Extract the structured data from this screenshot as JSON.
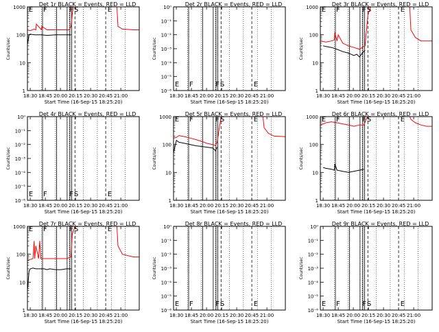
{
  "figure": {
    "xtick_labels": [
      "18:30",
      "18:45",
      "20:00",
      "20:15",
      "20:30",
      "20:45",
      "21:00"
    ],
    "x_axis_label": "Start Time (16-Sep-15 18:25:20)",
    "y_axis_label": "Counts/sec",
    "ytick_labels": [
      "1",
      "10",
      "100",
      "1000"
    ],
    "ytick_labels_small": [
      "10⁰",
      "10⁻¹",
      "10⁻²",
      "10⁻³",
      "10⁻⁴",
      "10⁻⁵",
      "10⁻⁶"
    ],
    "colors": {
      "events": "#000000",
      "lld": "#ff0000",
      "axes": "#000000"
    }
  },
  "chart_data": [
    {
      "type": "line",
      "title": "Det 1r BLACK = Events, RED = LLD",
      "yscale": "log",
      "ylim": [
        1,
        1000
      ],
      "has_data": true,
      "markers": [
        "E",
        "F",
        "F",
        "S",
        "E"
      ],
      "series": [
        {
          "color": "#000000",
          "x": [
            0.0,
            0.03,
            0.05,
            0.12,
            0.25,
            0.35,
            0.5,
            0.6,
            0.7,
            0.78
          ],
          "y": [
            45,
            100,
            105,
            100,
            100,
            95,
            100,
            100,
            100,
            100
          ]
        },
        {
          "color": "#ff0000",
          "x": [
            0.0,
            0.05,
            0.12,
            0.15,
            0.16,
            0.25,
            0.26,
            0.35,
            0.5,
            0.6,
            0.7,
            0.75,
            0.78,
            0.8,
            0.82,
            0.9,
            1.1,
            1.3,
            1.6,
            1.62,
            1.7,
            1.9,
            2.0
          ],
          "y": [
            150,
            140,
            160,
            150,
            240,
            150,
            200,
            150,
            150,
            150,
            150,
            150,
            200,
            500,
            1000,
            1000,
            1000,
            1000,
            1000,
            200,
            160,
            150,
            150
          ]
        }
      ]
    },
    {
      "type": "line",
      "title": "Det 2r BLACK = Events, RED = LLD",
      "yscale": "log",
      "ylim": [
        1e-06,
        1
      ],
      "has_data": false,
      "markers": [
        "E",
        "F",
        "F",
        "S",
        "E"
      ],
      "series": []
    },
    {
      "type": "line",
      "title": "Det 3r BLACK = Events, RED = LLD",
      "yscale": "log",
      "ylim": [
        1,
        1000
      ],
      "has_data": true,
      "markers": [
        "E",
        "F",
        "F",
        "S",
        "E"
      ],
      "series": [
        {
          "color": "#000000",
          "x": [
            0.05,
            0.1,
            0.2,
            0.3,
            0.4,
            0.5,
            0.55,
            0.6,
            0.65,
            0.7,
            0.75,
            0.8
          ],
          "y": [
            40,
            38,
            35,
            30,
            25,
            22,
            20,
            18,
            20,
            16,
            22,
            28
          ]
        },
        {
          "color": "#ff0000",
          "x": [
            0.0,
            0.1,
            0.2,
            0.25,
            0.26,
            0.3,
            0.32,
            0.4,
            0.5,
            0.6,
            0.7,
            0.75,
            0.8,
            0.85,
            0.9,
            1.1,
            1.3,
            1.6,
            1.62,
            1.7,
            1.8,
            2.0
          ],
          "y": [
            60,
            55,
            60,
            65,
            120,
            60,
            100,
            50,
            40,
            35,
            30,
            35,
            40,
            500,
            1000,
            1000,
            1000,
            1000,
            150,
            80,
            60,
            60
          ]
        }
      ]
    },
    {
      "type": "line",
      "title": "Det 4r BLACK = Events, RED = LLD",
      "yscale": "log",
      "ylim": [
        1e-06,
        1
      ],
      "has_data": false,
      "markers": [
        "E",
        "F",
        "F",
        "S",
        "E"
      ],
      "series": []
    },
    {
      "type": "line",
      "title": "Det 5r BLACK = Events, RED = LLD",
      "yscale": "log",
      "ylim": [
        1,
        1000
      ],
      "has_data": true,
      "markers": [
        "E",
        "F",
        "F",
        "S",
        "E"
      ],
      "series": [
        {
          "color": "#000000",
          "x": [
            0.0,
            0.05,
            0.1,
            0.2,
            0.3,
            0.4,
            0.5,
            0.6,
            0.7,
            0.75,
            0.78
          ],
          "y": [
            50,
            140,
            120,
            110,
            100,
            90,
            85,
            80,
            75,
            60,
            80
          ]
        },
        {
          "color": "#ff0000",
          "x": [
            0.0,
            0.05,
            0.1,
            0.2,
            0.3,
            0.4,
            0.5,
            0.6,
            0.7,
            0.75,
            0.78,
            0.82,
            0.85,
            0.9,
            1.1,
            1.3,
            1.6,
            1.62,
            1.7,
            1.8,
            2.0
          ],
          "y": [
            170,
            180,
            210,
            190,
            170,
            150,
            130,
            110,
            100,
            90,
            120,
            400,
            1000,
            1000,
            1000,
            1000,
            1000,
            400,
            250,
            200,
            190
          ]
        }
      ]
    },
    {
      "type": "line",
      "title": "Det 6r BLACK = Events, RED = LLD",
      "yscale": "log",
      "ylim": [
        1,
        1000
      ],
      "has_data": true,
      "markers": [
        "E",
        "F",
        "F",
        "S",
        "E"
      ],
      "series": [
        {
          "color": "#000000",
          "x": [
            0.05,
            0.1,
            0.2,
            0.25,
            0.26,
            0.3,
            0.4,
            0.5,
            0.6,
            0.7,
            0.78
          ],
          "y": [
            15,
            14,
            13,
            12,
            20,
            12,
            11,
            10,
            11,
            12,
            13
          ]
        },
        {
          "color": "#ff0000",
          "x": [
            0.0,
            0.05,
            0.1,
            0.2,
            0.3,
            0.4,
            0.5,
            0.6,
            0.7,
            0.78,
            0.82,
            0.85,
            0.9,
            1.1,
            1.3,
            1.6,
            1.62,
            1.7,
            1.8,
            1.9,
            2.0
          ],
          "y": [
            500,
            550,
            600,
            650,
            600,
            550,
            500,
            450,
            500,
            500,
            800,
            1000,
            1000,
            1000,
            1000,
            1000,
            800,
            600,
            500,
            450,
            450
          ]
        }
      ]
    },
    {
      "type": "line",
      "title": "Det 7r BLACK = Events, RED = LLD",
      "yscale": "log",
      "ylim": [
        1,
        1000
      ],
      "has_data": true,
      "markers": [
        "E",
        "F",
        "F",
        "S",
        "E"
      ],
      "series": [
        {
          "color": "#000000",
          "x": [
            0.0,
            0.03,
            0.05,
            0.1,
            0.15,
            0.2,
            0.3,
            0.35,
            0.4,
            0.5,
            0.6,
            0.7,
            0.78
          ],
          "y": [
            5,
            25,
            30,
            32,
            30,
            30,
            30,
            28,
            30,
            28,
            28,
            30,
            30
          ]
        },
        {
          "color": "#ff0000",
          "x": [
            0.0,
            0.05,
            0.1,
            0.12,
            0.13,
            0.15,
            0.2,
            0.22,
            0.24,
            0.3,
            0.4,
            0.5,
            0.6,
            0.7,
            0.78,
            0.8,
            0.85,
            0.9,
            1.1,
            1.3,
            1.6,
            1.62,
            1.7,
            1.9,
            2.0
          ],
          "y": [
            60,
            65,
            70,
            300,
            70,
            200,
            70,
            300,
            70,
            70,
            70,
            70,
            70,
            70,
            80,
            500,
            1000,
            1000,
            1000,
            1000,
            1000,
            200,
            100,
            80,
            80
          ]
        }
      ]
    },
    {
      "type": "line",
      "title": "Det 8r BLACK = Events, RED = LLD",
      "yscale": "log",
      "ylim": [
        1e-06,
        1
      ],
      "has_data": false,
      "markers": [
        "E",
        "F",
        "F",
        "S",
        "E"
      ],
      "series": []
    },
    {
      "type": "line",
      "title": "Det 9r BLACK = Events, RED = LLD",
      "yscale": "log",
      "ylim": [
        1e-06,
        1
      ],
      "has_data": false,
      "markers": [
        "E",
        "F",
        "F",
        "S",
        "E"
      ],
      "series": []
    }
  ]
}
